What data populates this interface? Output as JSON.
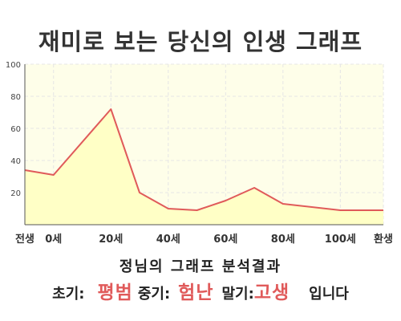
{
  "chart_data": {
    "type": "area",
    "title": "재미로 보는 당신의 인생 그래프",
    "categories": [
      "전생",
      "0세",
      "20세",
      "40세",
      "60세",
      "80세",
      "100세",
      "환생"
    ],
    "y_ticks": [
      "20",
      "40",
      "60",
      "80",
      "100"
    ],
    "ylim": [
      0,
      100
    ],
    "xlim": [
      -10,
      100
    ],
    "points": [
      {
        "x": -10,
        "y": 34
      },
      {
        "x": 0,
        "y": 31
      },
      {
        "x": 20,
        "y": 72
      },
      {
        "x": 30,
        "y": 20
      },
      {
        "x": 40,
        "y": 10
      },
      {
        "x": 50,
        "y": 9
      },
      {
        "x": 60,
        "y": 15
      },
      {
        "x": 70,
        "y": 23
      },
      {
        "x": 80,
        "y": 13
      },
      {
        "x": 100,
        "y": 9
      },
      {
        "x": 115,
        "y": 9
      }
    ],
    "x_tick_positions": [
      -10,
      0,
      20,
      40,
      60,
      80,
      100,
      115
    ],
    "grid": true,
    "colors": {
      "fill": "#ffffc6",
      "plot_bg": "#fefee9",
      "line": "#e05a5a",
      "grid": "#e5e5e5",
      "axis": "#555555"
    }
  },
  "result": {
    "heading": "정님의 그래프 분석결과",
    "early_label": "초기:",
    "early_value": "평범",
    "mid_label": "중기:",
    "mid_value": "험난",
    "late_label": "말기:",
    "late_value": "고생",
    "suffix": "입니다"
  }
}
